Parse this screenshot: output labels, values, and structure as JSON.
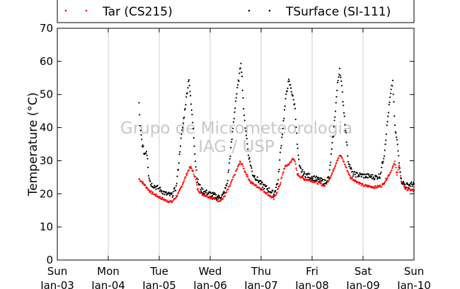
{
  "chart_data": {
    "type": "scatter",
    "title": "",
    "xlabel": "",
    "ylabel": "Temperature (°C)",
    "xlim": [
      "2021-01-03",
      "2021-01-10"
    ],
    "ylim": [
      0,
      70
    ],
    "yticks": [
      0,
      10,
      20,
      30,
      40,
      50,
      60,
      70
    ],
    "xticks": [
      {
        "day": "Sun",
        "date": "Jan-03"
      },
      {
        "day": "Mon",
        "date": "Jan-04"
      },
      {
        "day": "Tue",
        "date": "Jan-05"
      },
      {
        "day": "Wed",
        "date": "Jan-06"
      },
      {
        "day": "Thu",
        "date": "Jan-07"
      },
      {
        "day": "Fri",
        "date": "Jan-08"
      },
      {
        "day": "Sat",
        "date": "Jan-09"
      },
      {
        "day": "Sun",
        "date": "Jan-10"
      }
    ],
    "grid": "vertical lines at day ticks",
    "legend_placement": "top",
    "watermark": [
      "Grupo de Micrometeorologia",
      "IAG / USP"
    ],
    "series": [
      {
        "name": "Tar (CS215)",
        "color": "#ff0000",
        "points": [
          [
            "2021-01-04 14:30",
            24.5
          ],
          [
            "2021-01-04 16:00",
            23.5
          ],
          [
            "2021-01-04 18:00",
            22.0
          ],
          [
            "2021-01-04 20:00",
            20.5
          ],
          [
            "2021-01-05 00:00",
            19.0
          ],
          [
            "2021-01-05 03:00",
            18.0
          ],
          [
            "2021-01-05 06:00",
            17.5
          ],
          [
            "2021-01-05 09:00",
            20.0
          ],
          [
            "2021-01-05 12:00",
            24.5
          ],
          [
            "2021-01-05 14:00",
            27.5
          ],
          [
            "2021-01-05 15:00",
            28.0
          ],
          [
            "2021-01-05 17:00",
            25.0
          ],
          [
            "2021-01-05 18:00",
            21.5
          ],
          [
            "2021-01-05 20:00",
            20.0
          ],
          [
            "2021-01-06 00:00",
            19.0
          ],
          [
            "2021-01-06 04:00",
            18.0
          ],
          [
            "2021-01-06 06:00",
            18.5
          ],
          [
            "2021-01-06 09:00",
            22.0
          ],
          [
            "2021-01-06 12:00",
            26.5
          ],
          [
            "2021-01-06 14:00",
            29.5
          ],
          [
            "2021-01-06 15:00",
            29.0
          ],
          [
            "2021-01-06 17:00",
            26.0
          ],
          [
            "2021-01-06 19:00",
            23.5
          ],
          [
            "2021-01-07 00:00",
            21.5
          ],
          [
            "2021-01-07 03:00",
            20.0
          ],
          [
            "2021-01-07 05:00",
            19.0
          ],
          [
            "2021-01-07 06:00",
            18.5
          ],
          [
            "2021-01-07 09:00",
            23.0
          ],
          [
            "2021-01-07 11:00",
            28.0
          ],
          [
            "2021-01-07 14:00",
            29.5
          ],
          [
            "2021-01-07 15:00",
            31.0
          ],
          [
            "2021-01-07 16:00",
            29.5
          ],
          [
            "2021-01-07 17:00",
            26.0
          ],
          [
            "2021-01-07 20:00",
            24.5
          ],
          [
            "2021-01-08 00:00",
            24.0
          ],
          [
            "2021-01-08 04:00",
            23.0
          ],
          [
            "2021-01-08 06:00",
            22.5
          ],
          [
            "2021-01-08 09:00",
            25.5
          ],
          [
            "2021-01-08 12:00",
            30.5
          ],
          [
            "2021-01-08 13:00",
            31.5
          ],
          [
            "2021-01-08 14:00",
            31.0
          ],
          [
            "2021-01-08 16:00",
            28.0
          ],
          [
            "2021-01-08 18:00",
            25.0
          ],
          [
            "2021-01-09 00:00",
            22.5
          ],
          [
            "2021-01-09 06:00",
            22.0
          ],
          [
            "2021-01-09 09:00",
            22.5
          ],
          [
            "2021-01-09 12:00",
            25.5
          ],
          [
            "2021-01-09 14:00",
            28.0
          ],
          [
            "2021-01-09 15:00",
            29.5
          ],
          [
            "2021-01-09 16:00",
            26.0
          ],
          [
            "2021-01-09 17:00",
            28.5
          ],
          [
            "2021-01-09 18:00",
            24.0
          ],
          [
            "2021-01-09 20:00",
            21.5
          ],
          [
            "2021-01-10 00:00",
            21.0
          ]
        ]
      },
      {
        "name": "TSurface (SI-111)",
        "color": "#000000",
        "points": [
          [
            "2021-01-04 14:30",
            47.0
          ],
          [
            "2021-01-04 15:00",
            40.0
          ],
          [
            "2021-01-04 16:00",
            35.0
          ],
          [
            "2021-01-04 17:00",
            32.0
          ],
          [
            "2021-01-04 18:00",
            33.0
          ],
          [
            "2021-01-04 18:30",
            31.0
          ],
          [
            "2021-01-04 19:00",
            26.0
          ],
          [
            "2021-01-04 20:00",
            23.0
          ],
          [
            "2021-01-05 00:00",
            21.5
          ],
          [
            "2021-01-05 03:00",
            20.0
          ],
          [
            "2021-01-05 06:00",
            19.5
          ],
          [
            "2021-01-05 08:00",
            22.0
          ],
          [
            "2021-01-05 09:00",
            28.0
          ],
          [
            "2021-01-05 10:00",
            35.0
          ],
          [
            "2021-01-05 12:00",
            45.0
          ],
          [
            "2021-01-05 13:00",
            50.0
          ],
          [
            "2021-01-05 14:00",
            55.0
          ],
          [
            "2021-01-05 15:00",
            47.0
          ],
          [
            "2021-01-05 16:00",
            40.0
          ],
          [
            "2021-01-05 17:00",
            30.0
          ],
          [
            "2021-01-05 18:00",
            24.0
          ],
          [
            "2021-01-05 20:00",
            21.0
          ],
          [
            "2021-01-06 00:00",
            20.0
          ],
          [
            "2021-01-06 04:00",
            19.0
          ],
          [
            "2021-01-06 06:00",
            19.5
          ],
          [
            "2021-01-06 08:00",
            23.0
          ],
          [
            "2021-01-06 10:00",
            35.0
          ],
          [
            "2021-01-06 12:00",
            48.0
          ],
          [
            "2021-01-06 14:00",
            57.0
          ],
          [
            "2021-01-06 14:30",
            60.0
          ],
          [
            "2021-01-06 15:00",
            55.0
          ],
          [
            "2021-01-06 16:00",
            43.0
          ],
          [
            "2021-01-06 17:00",
            38.0
          ],
          [
            "2021-01-06 18:00",
            32.0
          ],
          [
            "2021-01-06 20:00",
            26.0
          ],
          [
            "2021-01-07 00:00",
            23.0
          ],
          [
            "2021-01-07 04:00",
            21.0
          ],
          [
            "2021-01-07 06:00",
            20.0
          ],
          [
            "2021-01-07 08:00",
            24.0
          ],
          [
            "2021-01-07 09:00",
            32.0
          ],
          [
            "2021-01-07 11:00",
            45.0
          ],
          [
            "2021-01-07 12:00",
            51.0
          ],
          [
            "2021-01-07 13:00",
            54.0
          ],
          [
            "2021-01-07 14:00",
            52.0
          ],
          [
            "2021-01-07 16:00",
            46.0
          ],
          [
            "2021-01-07 17:00",
            35.0
          ],
          [
            "2021-01-07 18:00",
            28.0
          ],
          [
            "2021-01-07 20:00",
            26.0
          ],
          [
            "2021-01-08 00:00",
            25.0
          ],
          [
            "2021-01-08 04:00",
            24.0
          ],
          [
            "2021-01-08 06:00",
            23.5
          ],
          [
            "2021-01-08 08:00",
            25.0
          ],
          [
            "2021-01-08 10:00",
            38.0
          ],
          [
            "2021-01-08 12:00",
            53.0
          ],
          [
            "2021-01-08 13:00",
            58.0
          ],
          [
            "2021-01-08 14:00",
            52.0
          ],
          [
            "2021-01-08 15:00",
            45.0
          ],
          [
            "2021-01-08 16:00",
            38.0
          ],
          [
            "2021-01-08 17:00",
            30.0
          ],
          [
            "2021-01-08 19:00",
            26.0
          ],
          [
            "2021-01-09 00:00",
            25.5
          ],
          [
            "2021-01-09 06:00",
            25.0
          ],
          [
            "2021-01-09 08:00",
            25.5
          ],
          [
            "2021-01-09 10:00",
            32.0
          ],
          [
            "2021-01-09 12:00",
            45.0
          ],
          [
            "2021-01-09 13:00",
            50.0
          ],
          [
            "2021-01-09 14:00",
            54.0
          ],
          [
            "2021-01-09 15:00",
            40.0
          ],
          [
            "2021-01-09 16:00",
            36.0
          ],
          [
            "2021-01-09 17:00",
            30.0
          ],
          [
            "2021-01-09 18:00",
            24.0
          ],
          [
            "2021-01-09 20:00",
            22.5
          ],
          [
            "2021-01-10 00:00",
            23.0
          ]
        ]
      }
    ]
  }
}
